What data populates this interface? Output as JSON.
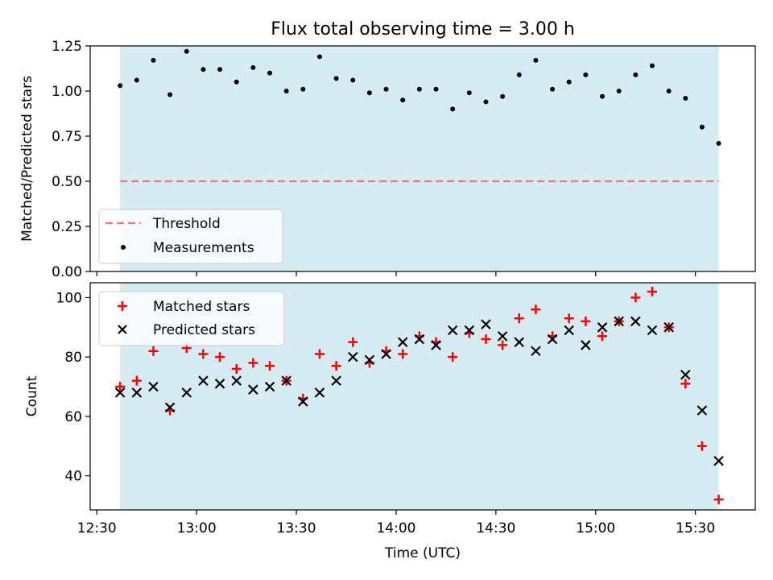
{
  "figure": {
    "title": "Flux total observing time = 3.00 h"
  },
  "colors": {
    "shade": "#add8e6",
    "threshold": "#f07878",
    "matched": "#ff0000",
    "predicted": "#000000",
    "measurement": "#000000"
  },
  "chart_data": [
    {
      "type": "scatter",
      "panel": "top",
      "ylabel": "Matched/Predicted stars",
      "xlabel": "",
      "ylim": [
        0,
        1.25
      ],
      "yticks": [
        0,
        0.25,
        0.5,
        0.75,
        1.0,
        1.25
      ],
      "ytick_labels": [
        "0.00",
        "0.25",
        "0.50",
        "0.75",
        "1.00",
        "1.25"
      ],
      "xlim": [
        "12:28",
        "15:48"
      ],
      "shaded_span": [
        "12:37",
        "15:37"
      ],
      "legend": {
        "position": "lower left",
        "entries": [
          "Threshold",
          "Measurements"
        ]
      },
      "threshold": {
        "name": "Threshold",
        "value": 0.5,
        "style": "dashed"
      },
      "series": [
        {
          "name": "Measurements",
          "marker": "dot",
          "x": [
            "12:37",
            "12:42",
            "12:47",
            "12:52",
            "12:57",
            "13:02",
            "13:07",
            "13:12",
            "13:17",
            "13:22",
            "13:27",
            "13:32",
            "13:37",
            "13:42",
            "13:47",
            "13:52",
            "13:57",
            "14:02",
            "14:07",
            "14:12",
            "14:17",
            "14:22",
            "14:27",
            "14:32",
            "14:37",
            "14:42",
            "14:47",
            "14:52",
            "14:57",
            "15:02",
            "15:07",
            "15:12",
            "15:17",
            "15:22",
            "15:27",
            "15:32",
            "15:37"
          ],
          "y": [
            1.03,
            1.06,
            1.17,
            0.98,
            1.22,
            1.12,
            1.12,
            1.05,
            1.13,
            1.1,
            1.0,
            1.01,
            1.19,
            1.07,
            1.06,
            0.99,
            1.01,
            0.95,
            1.01,
            1.01,
            0.9,
            0.99,
            0.94,
            0.97,
            1.09,
            1.17,
            1.01,
            1.05,
            1.09,
            0.97,
            1.0,
            1.09,
            1.14,
            1.0,
            0.96,
            0.8,
            0.71
          ]
        }
      ]
    },
    {
      "type": "scatter",
      "panel": "bottom",
      "xlabel": "Time (UTC)",
      "ylabel": "Count",
      "ylim": [
        28.5,
        105
      ],
      "yticks": [
        40,
        60,
        80,
        100
      ],
      "ytick_labels": [
        "40",
        "60",
        "80",
        "100"
      ],
      "xlim": [
        "12:28",
        "15:48"
      ],
      "xticks": [
        "12:30",
        "13:00",
        "13:30",
        "14:00",
        "14:30",
        "15:00",
        "15:30"
      ],
      "shaded_span": [
        "12:37",
        "15:37"
      ],
      "legend": {
        "position": "upper left",
        "entries": [
          "Matched stars",
          "Predicted stars"
        ]
      },
      "x": [
        "12:37",
        "12:42",
        "12:47",
        "12:52",
        "12:57",
        "13:02",
        "13:07",
        "13:12",
        "13:17",
        "13:22",
        "13:27",
        "13:32",
        "13:37",
        "13:42",
        "13:47",
        "13:52",
        "13:57",
        "14:02",
        "14:07",
        "14:12",
        "14:17",
        "14:22",
        "14:27",
        "14:32",
        "14:37",
        "14:42",
        "14:47",
        "14:52",
        "14:57",
        "15:02",
        "15:07",
        "15:12",
        "15:17",
        "15:22",
        "15:27",
        "15:32",
        "15:37"
      ],
      "series": [
        {
          "name": "Matched stars",
          "marker": "plus",
          "values": [
            70,
            72,
            82,
            62,
            83,
            81,
            80,
            76,
            78,
            77,
            72,
            66,
            81,
            77,
            85,
            78,
            82,
            81,
            87,
            85,
            80,
            88,
            86,
            84,
            93,
            96,
            87,
            93,
            92,
            87,
            92,
            100,
            102,
            90,
            71,
            50,
            32
          ]
        },
        {
          "name": "Predicted stars",
          "marker": "x",
          "values": [
            68,
            68,
            70,
            63,
            68,
            72,
            71,
            72,
            69,
            70,
            72,
            65,
            68,
            72,
            80,
            79,
            81,
            85,
            86,
            84,
            89,
            89,
            91,
            87,
            85,
            82,
            86,
            89,
            84,
            90,
            92,
            92,
            89,
            90,
            74,
            62,
            45
          ]
        }
      ]
    }
  ]
}
